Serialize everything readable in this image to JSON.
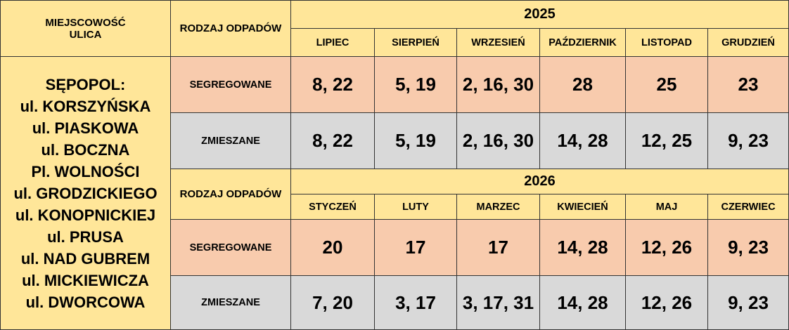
{
  "header": {
    "location_title": [
      "MIEJSCOWOŚĆ",
      "ULICA"
    ],
    "waste_type_label": "RODZAJ ODPADÓW"
  },
  "location": {
    "name": "SĘPOPOL:",
    "streets": [
      "ul. KORSZYŃSKA",
      "ul. PIASKOWA",
      "ul. BOCZNA",
      "Pl. WOLNOŚCI",
      "ul. GRODZICKIEGO",
      "ul. KONOPNICKIEJ",
      "ul. PRUSA",
      "ul. NAD GUBREM",
      "ul. MICKIEWICZA",
      "ul. DWORCOWA"
    ]
  },
  "sections": [
    {
      "year": "2025",
      "months": [
        "LIPIEC",
        "SIERPIEŃ",
        "WRZESIEŃ",
        "PAŹDZIERNIK",
        "LISTOPAD",
        "GRUDZIEŃ"
      ],
      "rows": [
        {
          "type": "SEGREGOWANE",
          "values": [
            "8, 22",
            "5, 19",
            "2, 16, 30",
            "28",
            "25",
            "23"
          ]
        },
        {
          "type": "ZMIESZANE",
          "values": [
            "8, 22",
            "5, 19",
            "2, 16, 30",
            "14, 28",
            "12, 25",
            "9, 23"
          ]
        }
      ]
    },
    {
      "year": "2026",
      "months": [
        "STYCZEŃ",
        "LUTY",
        "MARZEC",
        "KWIECIEŃ",
        "MAJ",
        "CZERWIEC"
      ],
      "rows": [
        {
          "type": "SEGREGOWANE",
          "values": [
            "20",
            "17",
            "17",
            "14, 28",
            "12, 26",
            "9, 23"
          ]
        },
        {
          "type": "ZMIESZANE",
          "values": [
            "7, 20",
            "3, 17",
            "3, 17, 31",
            "14, 28",
            "12, 26",
            "9, 23"
          ]
        }
      ]
    }
  ],
  "colors": {
    "header_yellow": "#ffe699",
    "segregowane_orange": "#f8cbad",
    "zmieszane_gray": "#d9d9d9"
  }
}
